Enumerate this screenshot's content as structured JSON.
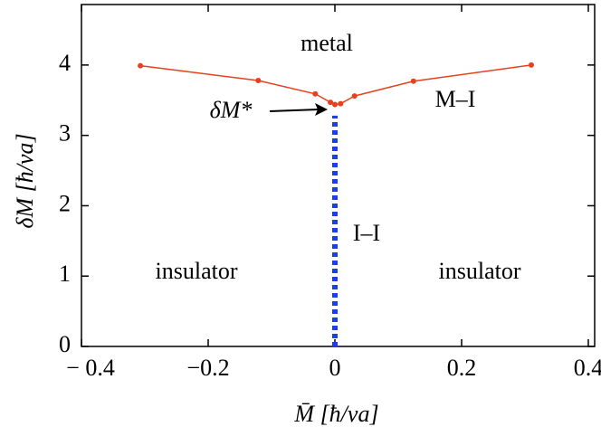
{
  "chart_data": {
    "type": "line",
    "xlabel": "M̄ [ħ/va]",
    "ylabel": "δM [ħ/va]",
    "xlim": [
      -0.4,
      0.41
    ],
    "ylim": [
      0,
      4.86
    ],
    "xticks": [
      {
        "value": -0.4,
        "label": "− 0.4"
      },
      {
        "value": -0.2,
        "label": "−0.2"
      },
      0,
      0.2,
      0.4
    ],
    "yticks": [
      0,
      1,
      2,
      3,
      4
    ],
    "series": [
      {
        "name": "M–I",
        "color": "#e8401c",
        "linestyle": "solid",
        "markers": true,
        "x": [
          -0.307,
          -0.121,
          -0.031,
          -0.007,
          0,
          0.009,
          0.031,
          0.124,
          0.31
        ],
        "values": [
          3.99,
          3.78,
          3.59,
          3.47,
          3.44,
          3.45,
          3.56,
          3.77,
          4.0
        ]
      },
      {
        "name": "I–I",
        "color": "#1a3ee8",
        "linestyle": "dotted",
        "markers": false,
        "x": [
          0,
          0
        ],
        "values": [
          0,
          3.28
        ]
      }
    ],
    "annotations": [
      "metal",
      "insulator",
      "insulator",
      "δM*"
    ]
  }
}
